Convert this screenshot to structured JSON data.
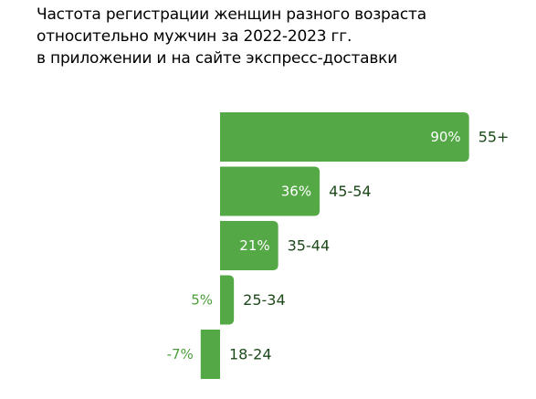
{
  "title_lines": [
    "Частота регистрации женщин разного возраста",
    "относительно мужчин за 2022-2023 гг.",
    "в приложении и на сайте экспресс-доставки"
  ],
  "colors": {
    "bar": "#55a846",
    "text": "#1d4a1a",
    "value_inside": "#ffffff",
    "value_outside": "#4a9e3a"
  },
  "chart_data": {
    "type": "bar",
    "orientation": "horizontal",
    "title": "Частота регистрации женщин разного возраста относительно мужчин за 2022-2023 гг. в приложении и на сайте экспресс-доставки",
    "categories": [
      "55+",
      "45-54",
      "35-44",
      "25-34",
      "18-24"
    ],
    "values": [
      90,
      36,
      21,
      5,
      -7
    ],
    "value_labels": [
      "90%",
      "36%",
      "21%",
      "5%",
      "-7%"
    ],
    "unit": "%",
    "grid": false,
    "legend": "none"
  }
}
